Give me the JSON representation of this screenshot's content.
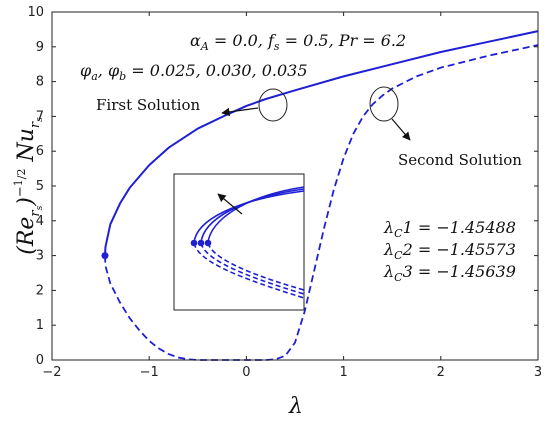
{
  "chart_data": {
    "type": "line",
    "xlim": [
      -2,
      3
    ],
    "ylim": [
      0,
      10
    ],
    "x_ticks": [
      "-2",
      "-1",
      "0",
      "1",
      "2",
      "3"
    ],
    "y_ticks": [
      "0",
      "1",
      "2",
      "3",
      "4",
      "5",
      "6",
      "7",
      "8",
      "9",
      "10"
    ],
    "xlabel": "λ",
    "ylabel": "(Re_{r_s})^{-1/2} Nu_{r_s}",
    "grid": false,
    "line_color": "#1f1fd6",
    "series": [
      {
        "style": "solid",
        "x": [
          -1.455,
          -1.45,
          -1.4,
          -1.3,
          -1.2,
          -1.0,
          -0.8,
          -0.5,
          -0.2,
          0.0,
          0.2,
          0.5,
          1.0,
          1.5,
          2.0,
          2.5,
          3.0
        ],
        "y": [
          3.0,
          3.25,
          3.9,
          4.5,
          4.95,
          5.6,
          6.1,
          6.65,
          7.05,
          7.3,
          7.5,
          7.75,
          8.15,
          8.5,
          8.85,
          9.15,
          9.45
        ]
      },
      {
        "style": "dashed",
        "x": [
          -1.455,
          -1.45,
          -1.4,
          -1.3,
          -1.2,
          -1.1,
          -1.0,
          -0.9,
          -0.8,
          -0.7,
          -0.6,
          -0.5,
          -0.4,
          -0.2,
          0.0,
          0.2,
          0.3,
          0.4,
          0.5,
          0.6,
          0.7,
          0.8,
          0.9,
          1.0,
          1.1,
          1.2,
          1.3,
          1.4,
          1.5,
          1.75,
          2.0,
          2.5,
          3.0
        ],
        "y": [
          3.0,
          2.7,
          2.2,
          1.65,
          1.2,
          0.85,
          0.55,
          0.33,
          0.17,
          0.07,
          0.02,
          0.0,
          0.0,
          0.0,
          0.0,
          0.0,
          0.02,
          0.12,
          0.5,
          1.4,
          2.6,
          3.8,
          4.9,
          5.8,
          6.5,
          7.0,
          7.35,
          7.6,
          7.8,
          8.15,
          8.4,
          8.75,
          9.05
        ]
      }
    ],
    "critical_points": [
      {
        "x": -1.455,
        "y": 3.0
      }
    ],
    "annotations": {
      "params_line1": "α_A = 0.0, f_s = 0.5, Pr = 6.2",
      "params_line2": "φ_a, φ_b = 0.025, 0.030, 0.035",
      "first_solution": "First Solution",
      "second_solution": "Second Solution",
      "lambda_c1": "λ_C1 = −1.45488",
      "lambda_c2": "λ_C2 = −1.45573",
      "lambda_c3": "λ_C3 = −1.45639"
    }
  }
}
